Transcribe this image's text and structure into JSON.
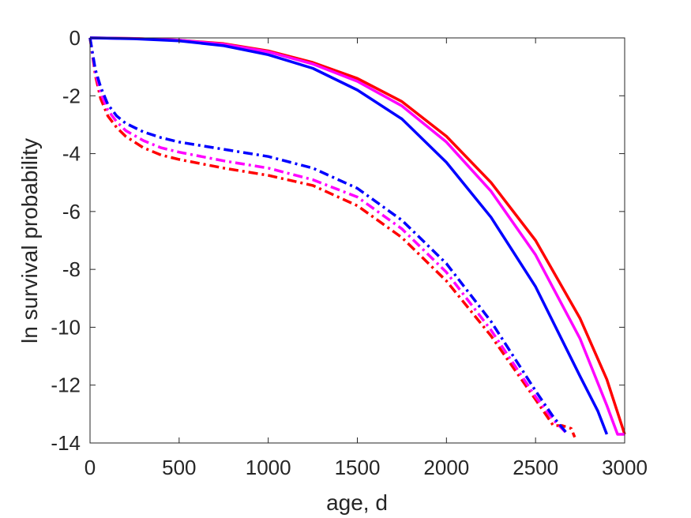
{
  "chart_data": {
    "type": "line",
    "title": "",
    "xlabel": "age, d",
    "ylabel": "ln survival probability",
    "xlim": [
      0,
      3000
    ],
    "ylim": [
      -14,
      0
    ],
    "xticks": [
      0,
      500,
      1000,
      1500,
      2000,
      2500,
      3000
    ],
    "yticks": [
      0,
      -2,
      -4,
      -6,
      -8,
      -10,
      -12,
      -14
    ],
    "grid": false,
    "legend": "none",
    "series": [
      {
        "color": "#ff0000",
        "style": "solid",
        "x": [
          0,
          250,
          500,
          750,
          1000,
          1250,
          1500,
          1750,
          2000,
          2250,
          2500,
          2750,
          2900,
          3000
        ],
        "y": [
          0,
          -0.02,
          -0.08,
          -0.2,
          -0.45,
          -0.85,
          -1.4,
          -2.2,
          -3.4,
          -5.0,
          -7.0,
          -9.7,
          -11.8,
          -13.7
        ]
      },
      {
        "color": "#ff00ff",
        "style": "solid",
        "x": [
          0,
          250,
          500,
          750,
          1000,
          1250,
          1500,
          1750,
          2000,
          2250,
          2500,
          2750,
          2900,
          2960,
          3000
        ],
        "y": [
          0,
          -0.02,
          -0.08,
          -0.22,
          -0.48,
          -0.9,
          -1.5,
          -2.35,
          -3.6,
          -5.3,
          -7.5,
          -10.4,
          -12.7,
          -13.7,
          -13.7
        ]
      },
      {
        "color": "#0000ff",
        "style": "solid",
        "x": [
          0,
          250,
          500,
          750,
          1000,
          1250,
          1500,
          1750,
          2000,
          2250,
          2500,
          2750,
          2850,
          2900
        ],
        "y": [
          0,
          -0.03,
          -0.1,
          -0.27,
          -0.58,
          -1.05,
          -1.8,
          -2.8,
          -4.3,
          -6.2,
          -8.6,
          -11.7,
          -12.9,
          -13.7
        ]
      },
      {
        "color": "#ff0000",
        "style": "dashdot",
        "x": [
          0,
          30,
          60,
          100,
          150,
          200,
          300,
          400,
          500,
          750,
          1000,
          1250,
          1500,
          1750,
          2000,
          2250,
          2500,
          2600,
          2650,
          2700,
          2720
        ],
        "y": [
          0,
          -1.3,
          -2.1,
          -2.7,
          -3.1,
          -3.4,
          -3.8,
          -4.05,
          -4.2,
          -4.5,
          -4.75,
          -5.1,
          -5.8,
          -6.9,
          -8.4,
          -10.3,
          -12.5,
          -13.4,
          -13.4,
          -13.5,
          -13.8
        ]
      },
      {
        "color": "#ff00ff",
        "style": "dashdot",
        "x": [
          0,
          30,
          60,
          100,
          150,
          200,
          300,
          400,
          500,
          750,
          1000,
          1250,
          1500,
          1750,
          2000,
          2250,
          2500,
          2600,
          2680
        ],
        "y": [
          0,
          -1.2,
          -1.9,
          -2.5,
          -2.9,
          -3.2,
          -3.55,
          -3.8,
          -3.95,
          -4.25,
          -4.5,
          -4.9,
          -5.5,
          -6.6,
          -8.1,
          -10.1,
          -12.4,
          -13.2,
          -13.7
        ]
      },
      {
        "color": "#0000ff",
        "style": "dashdot",
        "x": [
          0,
          30,
          60,
          100,
          150,
          200,
          300,
          400,
          500,
          750,
          1000,
          1250,
          1500,
          1750,
          2000,
          2250,
          2500,
          2600,
          2680
        ],
        "y": [
          0,
          -1.1,
          -1.7,
          -2.3,
          -2.7,
          -2.95,
          -3.25,
          -3.45,
          -3.6,
          -3.85,
          -4.1,
          -4.5,
          -5.2,
          -6.3,
          -7.8,
          -9.8,
          -12.2,
          -13.1,
          -13.7
        ]
      }
    ]
  }
}
